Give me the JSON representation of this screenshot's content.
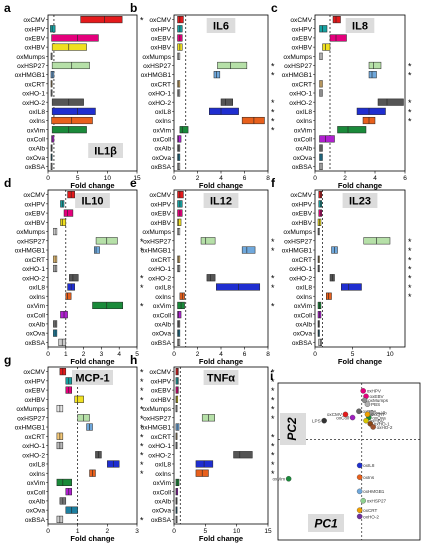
{
  "rows": [
    "oxCMV",
    "oxHPV",
    "oxEBV",
    "oxHBV",
    "oxMumps",
    "oxHSP27",
    "oxHMGB1",
    "oxCRT",
    "oxHO-1",
    "oxHO-2",
    "oxIL8",
    "oxIns",
    "oxVim",
    "oxColl",
    "oxAlb",
    "oxOva",
    "oxBSA"
  ],
  "axis_label": "Fold change",
  "panels_label": "Fold change bar charts",
  "chart_data": [
    {
      "type": "bar",
      "panel": "a",
      "title": "IL1β",
      "xlim": [
        0,
        15
      ],
      "ticks": [
        0,
        5,
        10,
        15
      ],
      "categories": [
        "oxCMV",
        "oxHPV",
        "oxEBV",
        "oxHBV",
        "oxMumps",
        "oxHSP27",
        "oxHMGB1",
        "oxCRT",
        "oxHO-1",
        "oxHO-2",
        "oxIL8",
        "oxIns",
        "oxVim",
        "oxColl",
        "oxAlb",
        "oxOva",
        "oxBSA"
      ],
      "lo": [
        5.5,
        0.4,
        0.6,
        0.7,
        0.5,
        0.7,
        0.5,
        0.5,
        0.5,
        0.7,
        0.7,
        0.6,
        0.7,
        0.6,
        0.5,
        0.5,
        0.5
      ],
      "mid": [
        9.5,
        0.7,
        5.0,
        3.5,
        0.6,
        4.0,
        0.7,
        0.6,
        0.6,
        3.5,
        5.0,
        4.0,
        3.5,
        0.7,
        0.6,
        0.6,
        0.6
      ],
      "hi": [
        12.5,
        1.2,
        8.5,
        6.5,
        0.7,
        7.0,
        1.0,
        0.7,
        0.7,
        6.0,
        8.0,
        7.5,
        6.5,
        1.0,
        0.7,
        0.7,
        0.7
      ],
      "sig": [
        "*",
        "",
        "",
        "",
        "",
        "",
        "",
        "",
        "",
        "",
        "",
        "",
        "",
        "",
        "",
        "",
        ""
      ]
    },
    {
      "type": "bar",
      "panel": "b",
      "title": "IL6",
      "xlim": [
        0,
        8
      ],
      "ticks": [
        0,
        2,
        4,
        6,
        8
      ],
      "categories": [
        "oxCMV",
        "oxHPV",
        "oxEBV",
        "oxHBV",
        "oxMumps",
        "oxHSP27",
        "oxHMGB1",
        "oxCRT",
        "oxHO-1",
        "oxHO-2",
        "oxIL8",
        "oxIns",
        "oxVim",
        "oxColl",
        "oxAlb",
        "oxOva",
        "oxBSA"
      ],
      "lo": [
        0.3,
        0.3,
        0.3,
        0.3,
        0.3,
        3.7,
        3.4,
        0.3,
        0.3,
        4.0,
        3.0,
        5.8,
        0.5,
        0.3,
        0.3,
        0.3,
        0.3
      ],
      "mid": [
        0.5,
        0.5,
        0.5,
        0.5,
        0.4,
        4.8,
        3.6,
        0.4,
        0.4,
        4.4,
        4.0,
        6.8,
        0.7,
        0.4,
        0.4,
        0.4,
        0.4
      ],
      "hi": [
        0.8,
        0.7,
        0.7,
        0.7,
        0.5,
        6.2,
        3.9,
        0.5,
        0.5,
        5.0,
        5.5,
        7.7,
        1.2,
        0.6,
        0.5,
        0.5,
        0.5
      ],
      "sig": [
        "",
        "",
        "",
        "",
        "",
        "*",
        "*",
        "",
        "",
        "*",
        "*",
        "*",
        "*",
        "",
        "",
        "",
        ""
      ]
    },
    {
      "type": "bar",
      "panel": "c",
      "title": "IL8",
      "xlim": [
        0,
        6
      ],
      "ticks": [
        0,
        2,
        4,
        6
      ],
      "categories": [
        "oxCMV",
        "oxHPV",
        "oxEBV",
        "oxHBV",
        "oxMumps",
        "oxHSP27",
        "oxHMGB1",
        "oxCRT",
        "oxHO-1",
        "oxHO-2",
        "oxIL8",
        "oxIns",
        "oxVim",
        "oxColl",
        "oxAlb",
        "oxOva",
        "oxBSA"
      ],
      "lo": [
        1.2,
        0.3,
        1.0,
        0.5,
        0.3,
        3.6,
        3.6,
        0.3,
        0.3,
        4.2,
        2.8,
        3.2,
        1.5,
        0.3,
        0.3,
        0.3,
        0.3
      ],
      "mid": [
        1.4,
        0.5,
        1.4,
        0.7,
        0.4,
        3.9,
        3.8,
        0.4,
        0.4,
        4.8,
        3.6,
        3.6,
        2.2,
        0.7,
        0.4,
        0.4,
        0.4
      ],
      "hi": [
        1.7,
        0.8,
        2.1,
        1.0,
        0.5,
        4.4,
        4.1,
        0.5,
        0.5,
        5.9,
        4.7,
        4.0,
        3.4,
        1.3,
        0.5,
        0.5,
        0.5
      ],
      "sig": [
        "",
        "",
        "",
        "",
        "",
        "*",
        "*",
        "",
        "",
        "*",
        "*",
        "*",
        "",
        "",
        "",
        "",
        ""
      ]
    },
    {
      "type": "bar",
      "panel": "d",
      "title": "IL10",
      "xlim": [
        0,
        5
      ],
      "ticks": [
        0,
        1,
        2,
        3,
        4,
        5
      ],
      "categories": [
        "oxCMV",
        "oxHPV",
        "oxEBV",
        "oxHBV",
        "oxMumps",
        "oxHSP27",
        "oxHMGB1",
        "oxCRT",
        "oxHO-1",
        "oxHO-2",
        "oxIL8",
        "oxIns",
        "oxVim",
        "oxColl",
        "oxAlb",
        "oxOva",
        "oxBSA"
      ],
      "lo": [
        1.1,
        0.7,
        0.9,
        0.7,
        0.3,
        2.7,
        2.6,
        0.3,
        0.3,
        1.2,
        1.1,
        1.0,
        2.5,
        0.7,
        0.3,
        0.3,
        0.6
      ],
      "mid": [
        1.3,
        0.8,
        1.1,
        0.8,
        0.4,
        3.3,
        2.7,
        0.4,
        0.4,
        1.4,
        1.3,
        1.1,
        3.3,
        0.9,
        0.4,
        0.4,
        0.8
      ],
      "hi": [
        1.5,
        0.9,
        1.4,
        1.0,
        0.5,
        3.9,
        2.9,
        0.5,
        0.5,
        1.7,
        1.5,
        1.3,
        4.2,
        1.1,
        0.5,
        0.5,
        1.0
      ],
      "sig": [
        "",
        "",
        "",
        "",
        "",
        "*",
        "*",
        "",
        "",
        "*",
        "*",
        "",
        "*",
        "",
        "",
        "",
        ""
      ]
    },
    {
      "type": "bar",
      "panel": "e",
      "title": "IL12",
      "xlim": [
        0,
        8
      ],
      "ticks": [
        0,
        2,
        4,
        6,
        8
      ],
      "categories": [
        "oxCMV",
        "oxHPV",
        "oxEBV",
        "oxHBV",
        "oxMumps",
        "oxHSP27",
        "oxHMGB1",
        "oxCRT",
        "oxHO-1",
        "oxHO-2",
        "oxIL8",
        "oxIns",
        "oxVim",
        "oxColl",
        "oxAlb",
        "oxOva",
        "oxBSA"
      ],
      "lo": [
        0.3,
        0.3,
        0.3,
        0.3,
        0.3,
        2.3,
        5.8,
        0.3,
        0.3,
        2.8,
        3.6,
        0.5,
        0.3,
        0.3,
        0.3,
        0.3,
        0.3
      ],
      "mid": [
        0.5,
        0.5,
        0.5,
        0.4,
        0.4,
        2.7,
        6.2,
        0.4,
        0.4,
        3.1,
        5.5,
        0.7,
        0.6,
        0.4,
        0.4,
        0.4,
        0.4
      ],
      "hi": [
        0.8,
        0.7,
        0.7,
        0.6,
        0.5,
        3.5,
        6.9,
        0.5,
        0.5,
        3.5,
        7.3,
        0.9,
        0.9,
        0.6,
        0.5,
        0.5,
        0.5
      ],
      "sig": [
        "",
        "",
        "",
        "",
        "",
        "*",
        "*",
        "",
        "",
        "*",
        "*",
        "",
        "*",
        "",
        "",
        "",
        ""
      ]
    },
    {
      "type": "bar",
      "panel": "f",
      "title": "IL23",
      "xlim": [
        0,
        12
      ],
      "ticks": [
        0,
        5,
        10
      ],
      "categories": [
        "oxCMV",
        "oxHPV",
        "oxEBV",
        "oxHBV",
        "oxMumps",
        "oxHSP27",
        "oxHMGB1",
        "oxCRT",
        "oxHO-1",
        "oxHO-2",
        "oxIL8",
        "oxIns",
        "oxVim",
        "oxColl",
        "oxAlb",
        "oxOva",
        "oxBSA"
      ],
      "lo": [
        0.5,
        0.5,
        0.5,
        0.4,
        0.4,
        6.5,
        2.2,
        0.4,
        0.4,
        2.0,
        3.5,
        1.5,
        0.4,
        0.4,
        0.4,
        0.4,
        0.5
      ],
      "mid": [
        0.7,
        0.7,
        0.7,
        0.6,
        0.5,
        8.2,
        2.6,
        0.5,
        0.5,
        2.3,
        4.5,
        1.8,
        0.6,
        0.6,
        0.5,
        0.5,
        0.7
      ],
      "hi": [
        0.9,
        0.9,
        0.9,
        0.8,
        0.6,
        10.0,
        3.0,
        0.6,
        0.6,
        2.6,
        6.2,
        2.2,
        0.8,
        0.8,
        0.6,
        0.6,
        0.9
      ],
      "sig": [
        "",
        "",
        "",
        "",
        "",
        "*",
        "*",
        "*",
        "*",
        "*",
        "*",
        "*",
        "",
        "",
        "",
        "",
        ""
      ]
    },
    {
      "type": "bar",
      "panel": "g",
      "title": "MCP-1",
      "xlim": [
        0,
        3
      ],
      "ticks": [
        0,
        1,
        2,
        3
      ],
      "categories": [
        "oxCMV",
        "oxHPV",
        "oxEBV",
        "oxHBV",
        "oxMumps",
        "oxHSP27",
        "oxHMGB1",
        "oxCRT",
        "oxHO-1",
        "oxHO-2",
        "oxIL8",
        "oxIns",
        "oxVim",
        "oxColl",
        "oxAlb",
        "oxOva",
        "oxBSA"
      ],
      "lo": [
        0.4,
        0.6,
        0.6,
        0.9,
        0.3,
        1.0,
        1.3,
        0.3,
        0.3,
        1.6,
        2.0,
        1.4,
        0.3,
        0.6,
        0.4,
        0.6,
        0.3
      ],
      "mid": [
        0.5,
        0.7,
        0.7,
        1.0,
        0.4,
        1.2,
        1.4,
        0.4,
        0.4,
        1.7,
        2.2,
        1.5,
        0.5,
        0.7,
        0.5,
        0.8,
        0.4
      ],
      "hi": [
        0.6,
        0.8,
        0.8,
        1.2,
        0.5,
        1.4,
        1.5,
        0.5,
        0.5,
        1.8,
        2.4,
        1.6,
        0.8,
        0.8,
        0.6,
        1.0,
        0.5
      ],
      "sig": [
        "*",
        "*",
        "*",
        "*",
        "*",
        "*",
        "*",
        "*",
        "*",
        "*",
        "*",
        "*",
        "",
        "",
        "",
        "",
        "*"
      ]
    },
    {
      "type": "bar",
      "panel": "h",
      "title": "TNFα",
      "xlim": [
        0,
        15
      ],
      "ticks": [
        0,
        5,
        10,
        15
      ],
      "categories": [
        "oxCMV",
        "oxHPV",
        "oxEBV",
        "oxHBV",
        "oxMumps",
        "oxHSP27",
        "oxHMGB1",
        "oxCRT",
        "oxHO-1",
        "oxHO-2",
        "oxIL8",
        "oxIns",
        "oxVim",
        "oxColl",
        "oxAlb",
        "oxOva",
        "oxBSA"
      ],
      "lo": [
        0.3,
        0.3,
        0.3,
        0.3,
        0.3,
        4.5,
        0.3,
        0.3,
        0.3,
        9.5,
        3.5,
        3.5,
        0.3,
        0.3,
        0.3,
        0.3,
        0.3
      ],
      "mid": [
        0.5,
        0.5,
        0.5,
        0.4,
        0.4,
        5.5,
        0.5,
        0.4,
        0.4,
        10.5,
        4.8,
        4.5,
        0.5,
        0.4,
        0.4,
        0.4,
        0.4
      ],
      "hi": [
        0.7,
        0.7,
        0.7,
        0.6,
        0.5,
        6.5,
        0.8,
        0.5,
        0.5,
        12.5,
        6.2,
        5.5,
        0.8,
        0.6,
        0.5,
        0.5,
        0.5
      ],
      "sig": [
        "*",
        "*",
        "*",
        "*",
        "*",
        "*",
        "",
        "*",
        "*",
        "*",
        "*",
        "*",
        "",
        "",
        "",
        "",
        ""
      ]
    },
    {
      "type": "scatter",
      "panel": "i",
      "xlabel": "PC1",
      "ylabel": "PC2",
      "points": [
        {
          "label": "oxHPV",
          "x": 0.2,
          "y": 0.9,
          "color": "#e4007c"
        },
        {
          "label": "oxEBV",
          "x": 0.24,
          "y": 0.83,
          "color": "#e4007c"
        },
        {
          "label": "oxMumps",
          "x": 0.22,
          "y": 0.78,
          "color": "#8c8c8c"
        },
        {
          "label": "PBS",
          "x": 0.26,
          "y": 0.73,
          "color": "#b0b0b0"
        },
        {
          "label": "oxCMV",
          "x": -0.05,
          "y": 0.6,
          "color": "#e41a1c"
        },
        {
          "label": "oxColl",
          "x": 0.05,
          "y": 0.56,
          "color": "#a020c0"
        },
        {
          "label": "LPS",
          "x": -0.35,
          "y": 0.52,
          "color": "#333333"
        },
        {
          "label": "oxBSA",
          "x": 0.14,
          "y": 0.64,
          "color": "#666666"
        },
        {
          "label": "oxAlb",
          "x": 0.32,
          "y": 0.62,
          "color": "#999999"
        },
        {
          "label": "oxOva",
          "x": 0.28,
          "y": 0.56,
          "color": "#1a8a3a"
        },
        {
          "label": "oxHBV",
          "x": 0.24,
          "y": 0.52,
          "color": "#d4c400"
        },
        {
          "label": "oxCRT",
          "x": 0.26,
          "y": 0.6,
          "color": "#f0a000"
        },
        {
          "label": "oxHO-1",
          "x": 0.3,
          "y": 0.48,
          "color": "#8b4513"
        },
        {
          "label": "oxHO-2",
          "x": 0.34,
          "y": 0.44,
          "color": "#a0522d"
        },
        {
          "label": "oxVim",
          "x": -0.85,
          "y": -0.22,
          "color": "#1a8a3a"
        },
        {
          "label": "oxIL8",
          "x": 0.15,
          "y": -0.05,
          "color": "#2030d0"
        },
        {
          "label": "oxIns",
          "x": 0.15,
          "y": -0.2,
          "color": "#e8601c"
        },
        {
          "label": "oxHMGB1",
          "x": 0.15,
          "y": -0.38,
          "color": "#6fa8dc"
        },
        {
          "label": "oxHSP27",
          "x": 0.2,
          "y": -0.5,
          "color": "#8fd18f"
        },
        {
          "label": "oxCRT",
          "x": 0.15,
          "y": -0.62,
          "color": "#f0a000"
        },
        {
          "label": "oxHO-2",
          "x": 0.15,
          "y": -0.7,
          "color": "#7030a0"
        }
      ]
    }
  ]
}
